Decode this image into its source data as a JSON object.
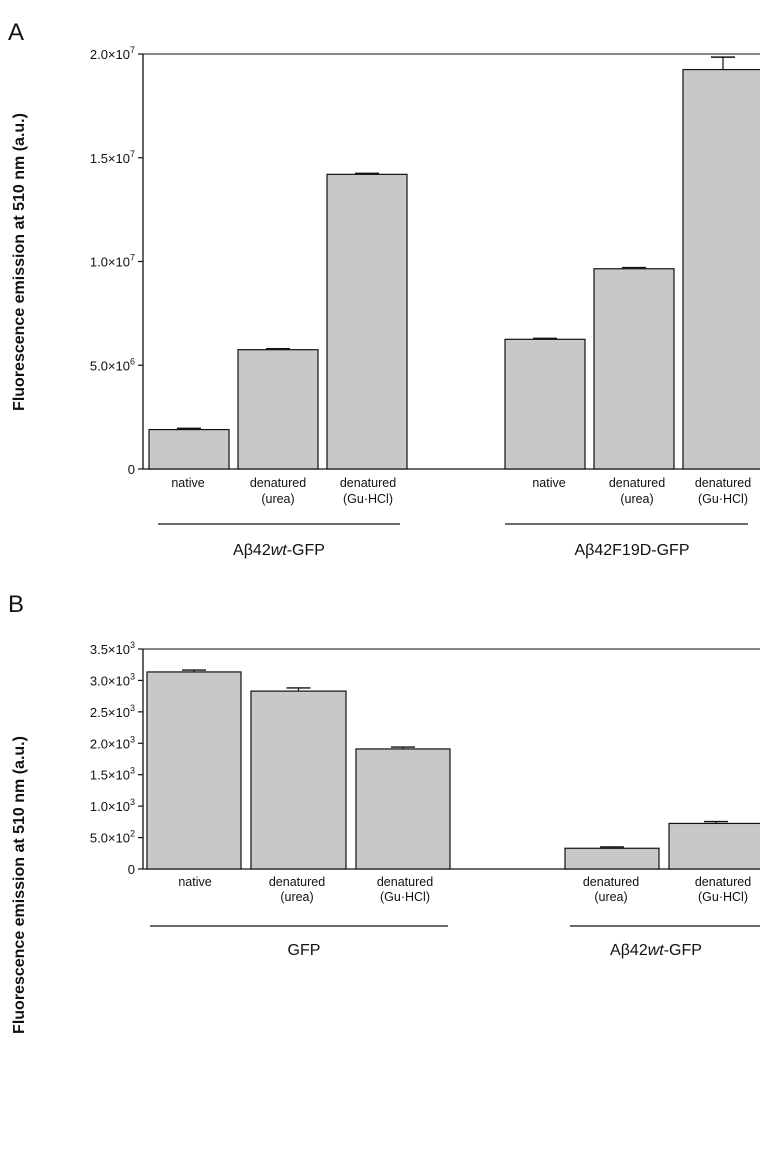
{
  "chart_data": [
    {
      "type": "bar",
      "panel_label": "A",
      "ylabel": "Fluorescence emission at 510 nm  (a.u.)",
      "ylim": [
        0,
        20000000
      ],
      "yticks": [
        {
          "value": 0,
          "mantissa": "0",
          "exponent": ""
        },
        {
          "value": 5000000,
          "mantissa": "5.0×10",
          "exponent": "6"
        },
        {
          "value": 10000000,
          "mantissa": "1.0×10",
          "exponent": "7"
        },
        {
          "value": 15000000,
          "mantissa": "1.5×10",
          "exponent": "7"
        },
        {
          "value": 20000000,
          "mantissa": "2.0×10",
          "exponent": "7"
        }
      ],
      "groups": [
        {
          "name_parts": [
            {
              "text": "Aβ42",
              "italic": false
            },
            {
              "text": "wt",
              "italic": true
            },
            {
              "text": "-GFP",
              "italic": false
            }
          ],
          "bars": [
            {
              "label": [
                "native"
              ],
              "value": 1900000,
              "error": 60000
            },
            {
              "label": [
                "denatured",
                "(urea)"
              ],
              "value": 5750000,
              "error": 50000
            },
            {
              "label": [
                "denatured",
                "(Gu·HCl)"
              ],
              "value": 14200000,
              "error": 50000
            }
          ]
        },
        {
          "name_parts": [
            {
              "text": "Aβ42F19D-GFP",
              "italic": false
            }
          ],
          "bars": [
            {
              "label": [
                "native"
              ],
              "value": 6250000,
              "error": 50000
            },
            {
              "label": [
                "denatured",
                "(urea)"
              ],
              "value": 9650000,
              "error": 60000
            },
            {
              "label": [
                "denatured",
                "(Gu·HCl)"
              ],
              "value": 19250000,
              "error": 600000
            }
          ]
        }
      ],
      "colors": {
        "bar": "#c8c8c8",
        "stroke": "#111111"
      }
    },
    {
      "type": "bar",
      "panel_label": "B",
      "ylabel": "Fluorescence emission at 510 nm  (a.u.)",
      "ylim": [
        0,
        3500
      ],
      "yticks": [
        {
          "value": 0,
          "mantissa": "0",
          "exponent": ""
        },
        {
          "value": 500,
          "mantissa": "5.0×10",
          "exponent": "2"
        },
        {
          "value": 1000,
          "mantissa": "1.0×10",
          "exponent": "3"
        },
        {
          "value": 1500,
          "mantissa": "1.5×10",
          "exponent": "3"
        },
        {
          "value": 2000,
          "mantissa": "2.0×10",
          "exponent": "3"
        },
        {
          "value": 2500,
          "mantissa": "2.5×10",
          "exponent": "3"
        },
        {
          "value": 3000,
          "mantissa": "3.0×10",
          "exponent": "3"
        },
        {
          "value": 3500,
          "mantissa": "3.5×10",
          "exponent": "3"
        }
      ],
      "groups": [
        {
          "name_parts": [
            {
              "text": "GFP",
              "italic": false
            }
          ],
          "bars": [
            {
              "label": [
                "native"
              ],
              "value": 3135,
              "error": 30
            },
            {
              "label": [
                "denatured",
                "(urea)"
              ],
              "value": 2830,
              "error": 50
            },
            {
              "label": [
                "denatured",
                "(Gu·HCl)"
              ],
              "value": 1910,
              "error": 30
            }
          ]
        },
        {
          "name_parts": [
            {
              "text": "Aβ42",
              "italic": false
            },
            {
              "text": "wt",
              "italic": true
            },
            {
              "text": "-GFP",
              "italic": false
            }
          ],
          "bars": [
            {
              "label": [
                "denatured",
                "(urea)"
              ],
              "value": 330,
              "error": 20
            },
            {
              "label": [
                "denatured",
                "(Gu·HCl)"
              ],
              "value": 725,
              "error": 30
            }
          ]
        }
      ],
      "colors": {
        "bar": "#c8c8c8",
        "stroke": "#111111"
      }
    }
  ]
}
